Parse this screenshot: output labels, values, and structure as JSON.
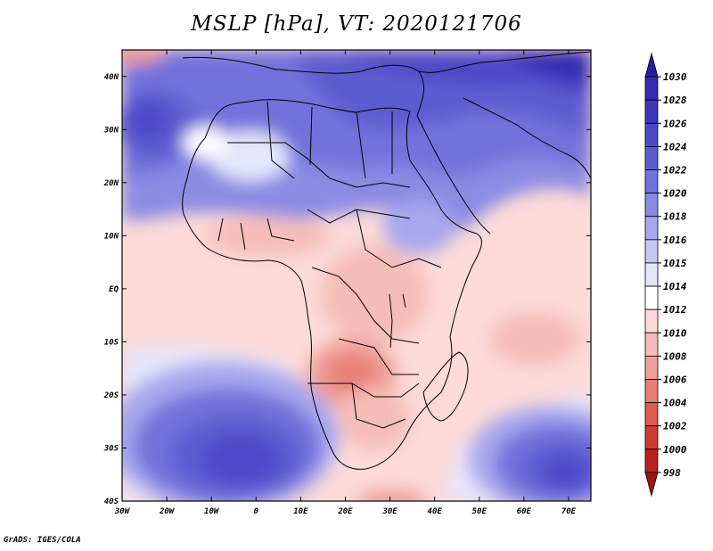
{
  "title": "MSLP [hPa], VT: 2020121706",
  "footer": "GrADS: IGES/COLA",
  "map": {
    "lat_labels": [
      "40N",
      "30N",
      "20N",
      "10N",
      "EQ",
      "10S",
      "20S",
      "30S",
      "40S"
    ],
    "lat_values": [
      40,
      30,
      20,
      10,
      0,
      -10,
      -20,
      -30,
      -40
    ],
    "lon_labels": [
      "30W",
      "20W",
      "10W",
      "0",
      "10E",
      "20E",
      "30E",
      "40E",
      "50E",
      "60E",
      "70E"
    ],
    "lon_values": [
      -30,
      -20,
      -10,
      0,
      10,
      20,
      30,
      40,
      50,
      60,
      70
    ],
    "lon_range": [
      -30,
      75
    ],
    "lat_range": [
      -40,
      45
    ]
  },
  "colorbar": {
    "levels": [
      "1030",
      "1028",
      "1026",
      "1024",
      "1022",
      "1020",
      "1018",
      "1016",
      "1015",
      "1014",
      "1012",
      "1010",
      "1008",
      "1006",
      "1004",
      "1002",
      "1000",
      "998"
    ],
    "colors": [
      "#2b1f9e",
      "#3429b0",
      "#3f35bd",
      "#4d48c8",
      "#5d5dd2",
      "#7272db",
      "#8b8be4",
      "#a7a7ee",
      "#c6c6f6",
      "#e6e6fb",
      "#ffffff",
      "#fbdad8",
      "#f6bdb8",
      "#ef9e97",
      "#e87d74",
      "#df5a50",
      "#d03a35",
      "#b7221f",
      "#9e1414"
    ]
  }
}
